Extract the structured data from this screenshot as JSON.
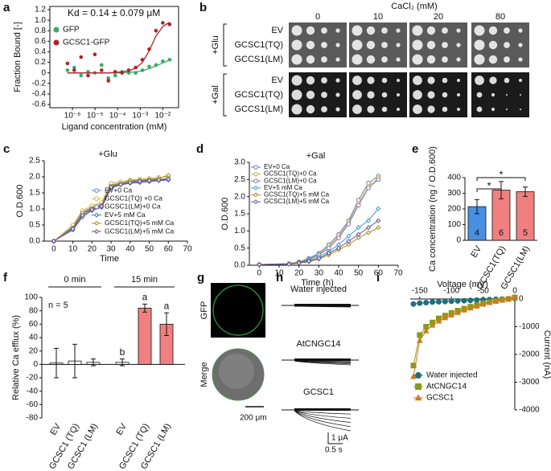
{
  "chart_data": [
    {
      "label": "a",
      "type": "scatter",
      "annotation": "Kd = 0.14 ± 0.079 μM",
      "xlabel": "Ligand concentration (mM)",
      "ylabel": "Fraction Bound [-]",
      "xscale": "log",
      "x": [
        6e-07,
        1.2e-06,
        2.4e-06,
        4.9e-06,
        9.8e-06,
        1.95e-05,
        3.9e-05,
        7.8e-05,
        0.000156,
        0.00031,
        0.00063,
        0.00125,
        0.0025,
        0.005,
        0.01,
        0.02
      ],
      "xlim": [
        1e-07,
        0.05
      ],
      "xticks": [
        {
          "value": 1e-06,
          "label": "10⁻⁶"
        },
        {
          "value": 1e-05,
          "label": "10⁻⁵"
        },
        {
          "value": 0.0001,
          "label": "10⁻⁴"
        },
        {
          "value": 0.001,
          "label": "10⁻³"
        },
        {
          "value": 0.01,
          "label": "10⁻²"
        }
      ],
      "ylim": [
        -0.6,
        1.2
      ],
      "yticks": [
        -0.6,
        -0.4,
        -0.2,
        0,
        0.2,
        0.4,
        0.6,
        0.8,
        {
          "value": 1,
          "label": "1.0"
        },
        1.2
      ],
      "series": [
        {
          "name": "GFP",
          "color": "#3aa86a",
          "values": [
            0.05,
            0.1,
            -0.05,
            0.02,
            0,
            0.15,
            -0.1,
            -0.05,
            0.02,
            0,
            0,
            0.05,
            0.12,
            0.15,
            0.22,
            0.25
          ],
          "fit": [
            0,
            0,
            0,
            0,
            0,
            0,
            0,
            0,
            0,
            0.01,
            0.02,
            0.04,
            0.08,
            0.13,
            0.19,
            0.24
          ]
        },
        {
          "name": "GCSC1-GFP",
          "color": "#b0232a",
          "values": [
            0.18,
            0.05,
            0.3,
            -0.05,
            0.35,
            0.05,
            -0.15,
            0.02,
            0,
            0.05,
            0.1,
            0.25,
            0.45,
            0.8,
            0.95,
            0.92
          ],
          "fit": [
            0,
            0,
            0,
            0,
            0,
            0,
            0,
            0.01,
            0.02,
            0.04,
            0.09,
            0.2,
            0.42,
            0.7,
            0.88,
            0.96
          ]
        }
      ]
    },
    {
      "label": "c",
      "type": "line",
      "title": "+Glu",
      "xlabel": "Time",
      "ylabel": "O.D.600",
      "x": [
        0,
        10,
        15,
        20,
        25,
        30,
        35,
        40,
        45,
        50,
        55,
        60
      ],
      "xlim": [
        -5,
        70
      ],
      "xticks": [
        0,
        10,
        20,
        30,
        40,
        50,
        60,
        70
      ],
      "ylim": [
        0,
        2.5
      ],
      "yticks": [
        {
          "value": 0,
          "label": "0.0"
        },
        0.5,
        {
          "value": 1,
          "label": "1.0"
        },
        1.5,
        {
          "value": 2,
          "label": "2.0"
        },
        2.5
      ],
      "series": [
        {
          "name": "EV+0 Ca",
          "color": "#5b7fbf",
          "marker": "circle",
          "values": [
            0,
            0.45,
            0.9,
            1.05,
            1.15,
            1.75,
            1.8,
            1.85,
            1.85,
            1.88,
            1.9,
            1.92
          ]
        },
        {
          "name": "GCSC1(TQ) +0 Ca",
          "color": "#c8b43c",
          "marker": "circle",
          "values": [
            0,
            0.5,
            0.95,
            1.1,
            1.2,
            1.8,
            1.85,
            1.9,
            1.92,
            1.95,
            1.98,
            2
          ]
        },
        {
          "name": "GCSC1(LM)+0 Ca",
          "color": "#8a6fb0",
          "marker": "circle",
          "values": [
            0,
            0.4,
            0.85,
            1,
            1.1,
            1.7,
            1.78,
            1.85,
            1.88,
            1.9,
            1.92,
            1.95
          ]
        },
        {
          "name": "EV+5 mM Ca",
          "color": "#3c6ec8",
          "marker": "diamond",
          "values": [
            0,
            0.35,
            0.75,
            0.95,
            1.05,
            1.65,
            1.75,
            1.8,
            1.82,
            1.85,
            1.88,
            1.9
          ]
        },
        {
          "name": "GCSC1(TQ)+5 mM Ca",
          "color": "#a89020",
          "marker": "diamond",
          "values": [
            0,
            0.42,
            0.88,
            1.02,
            1.12,
            1.72,
            1.8,
            1.88,
            1.9,
            1.92,
            1.95,
            2.05
          ]
        },
        {
          "name": "GCSC1(LM)+5 mM Ca",
          "color": "#6a4e90",
          "marker": "diamond",
          "values": [
            0,
            0.38,
            0.8,
            0.98,
            1.08,
            1.68,
            1.76,
            1.82,
            1.86,
            1.88,
            1.9,
            1.92
          ]
        }
      ]
    },
    {
      "label": "d",
      "type": "line",
      "title": "+Gal",
      "xlabel": "Time (h)",
      "ylabel": "O.D.600",
      "x": [
        0,
        15,
        20,
        25,
        30,
        35,
        40,
        45,
        50,
        55,
        60
      ],
      "xlim": [
        -5,
        70
      ],
      "xticks": [
        0,
        10,
        20,
        30,
        40,
        50,
        60,
        70
      ],
      "ylim": [
        0,
        3
      ],
      "yticks": [
        {
          "value": 0,
          "label": "0.0"
        },
        0.5,
        {
          "value": 1,
          "label": "1.0"
        },
        1.5,
        {
          "value": 2,
          "label": "2.0"
        },
        2.5,
        {
          "value": 3,
          "label": "3.0"
        }
      ],
      "series": [
        {
          "name": "EV+0 Ca",
          "color": "#5b7fbf",
          "marker": "circle",
          "values": [
            0.02,
            0.05,
            0.1,
            0.2,
            0.35,
            0.6,
            0.9,
            1.3,
            1.9,
            2.4,
            2.6
          ]
        },
        {
          "name": "GCSC1(TQ)+0 Ca",
          "color": "#c8b43c",
          "marker": "circle",
          "values": [
            0.02,
            0.05,
            0.1,
            0.18,
            0.32,
            0.55,
            0.85,
            1.25,
            1.8,
            2.3,
            2.55
          ]
        },
        {
          "name": "GCSC1(LM)+0 Ca",
          "color": "#8a6fb0",
          "marker": "circle",
          "values": [
            0.02,
            0.04,
            0.09,
            0.17,
            0.3,
            0.5,
            0.8,
            1.2,
            1.75,
            2.25,
            2.5
          ]
        },
        {
          "name": "EV+5 mM Ca",
          "color": "#3c9ad8",
          "marker": "diamond",
          "values": [
            0.02,
            0.04,
            0.08,
            0.15,
            0.25,
            0.4,
            0.6,
            0.85,
            1.1,
            1.3,
            1.65
          ]
        },
        {
          "name": "GCSC1(TQ)+5 mM Ca",
          "color": "#a89020",
          "marker": "diamond",
          "values": [
            0.02,
            0.03,
            0.06,
            0.1,
            0.18,
            0.3,
            0.45,
            0.6,
            0.8,
            0.95,
            1.1
          ]
        },
        {
          "name": "GCSC1(LM)+5 mM Ca",
          "color": "#6a4e90",
          "marker": "diamond",
          "values": [
            0.02,
            0.03,
            0.07,
            0.12,
            0.2,
            0.35,
            0.5,
            0.7,
            0.9,
            1.1,
            1.3
          ]
        }
      ]
    },
    {
      "label": "e",
      "type": "bar",
      "ylabel": "Ca concentration (ng / O.D.600)",
      "categories": [
        "EV",
        "GCSC1(TQ)",
        "GCSC1(LM)"
      ],
      "values": [
        215,
        320,
        310
      ],
      "errors": [
        45,
        55,
        30
      ],
      "n": [
        4,
        6,
        5
      ],
      "colors": [
        "#4a90e2",
        "#f08080",
        "#f08080"
      ],
      "significance": [
        "*",
        "*"
      ],
      "ylim": [
        0,
        400
      ],
      "yticks": [
        0,
        100,
        200,
        300,
        400
      ]
    },
    {
      "label": "f",
      "type": "bar",
      "ylabel": "Relative Ca efflux (%)",
      "annotation": "n = 5",
      "groups": [
        "0 min",
        "15 min"
      ],
      "categories": [
        "EV",
        "GCSC1 (TQ)",
        "GCSC1 (LM)",
        "EV",
        "GCSC1 (TQ)",
        "GCSC1 (LM)"
      ],
      "values": [
        2,
        5,
        3,
        3,
        84,
        60
      ],
      "errors": [
        22,
        25,
        5,
        5,
        6,
        17
      ],
      "letters": [
        null,
        null,
        null,
        "b",
        "a",
        "a"
      ],
      "colors": [
        "#ffffff",
        "#ffffff",
        "#ffffff",
        "#ffffff",
        "#f08080",
        "#f08080"
      ],
      "ylim": [
        -80,
        100
      ],
      "yticks": [
        -80,
        -60,
        -40,
        -20,
        0,
        20,
        40,
        60,
        80,
        100
      ]
    },
    {
      "label": "i",
      "type": "line",
      "xlabel": "Voltage (mV)",
      "ylabel": "Current (nA)",
      "xaxis": "top",
      "yaxis": "right",
      "x": [
        -160,
        -150,
        -140,
        -130,
        -120,
        -110,
        -100,
        -90,
        -80,
        -70,
        -60,
        -50,
        -40,
        -30,
        -20,
        -10,
        0
      ],
      "xlim": [
        -165,
        0
      ],
      "xticks": [
        -150,
        -100,
        -50,
        0
      ],
      "ylim": [
        -4000,
        0
      ],
      "yticks": [
        -4000,
        -3000,
        -2000,
        -1000,
        0
      ],
      "series": [
        {
          "name": "Water injected",
          "color": "#1f6f7f",
          "marker": "circle",
          "values": [
            -180,
            -150,
            -130,
            -110,
            -100,
            -90,
            -80,
            -70,
            -60,
            -50,
            -40,
            -30,
            -20,
            -10,
            -5,
            0,
            20
          ]
        },
        {
          "name": "AtCNGC14",
          "color": "#8a9a1a",
          "marker": "square",
          "values": [
            -2400,
            -1300,
            -1000,
            -850,
            -700,
            -600,
            -500,
            -420,
            -350,
            -280,
            -220,
            -160,
            -110,
            -70,
            -30,
            0,
            50
          ]
        },
        {
          "name": "GCSC1",
          "color": "#d07a1a",
          "marker": "triangle",
          "values": [
            -2800,
            -1500,
            -1150,
            -950,
            -800,
            -680,
            -580,
            -490,
            -400,
            -330,
            -260,
            -190,
            -130,
            -80,
            -30,
            10,
            70
          ]
        }
      ]
    }
  ],
  "spot_assay": {
    "label": "b",
    "title": "CaCl₂ (mM)",
    "columns": [
      "0",
      "10",
      "20",
      "80"
    ],
    "conditions": [
      {
        "name": "+Glu",
        "rows": [
          "EV",
          "GCSC1(TQ)",
          "GCCS1(LM)"
        ]
      },
      {
        "name": "+Gal",
        "rows": [
          "EV",
          "GCSC1(TQ)",
          "GCCS1(LM)"
        ]
      }
    ]
  },
  "microscopy": {
    "label": "g",
    "channels": [
      "GFP",
      "Merge"
    ],
    "scale_bar": "200 μm"
  },
  "traces": {
    "label": "h",
    "conditions": [
      "Water injected",
      "AtCNGC14",
      "GCSC1"
    ],
    "scale_current": "1 μA",
    "scale_time": "0.5 s"
  }
}
